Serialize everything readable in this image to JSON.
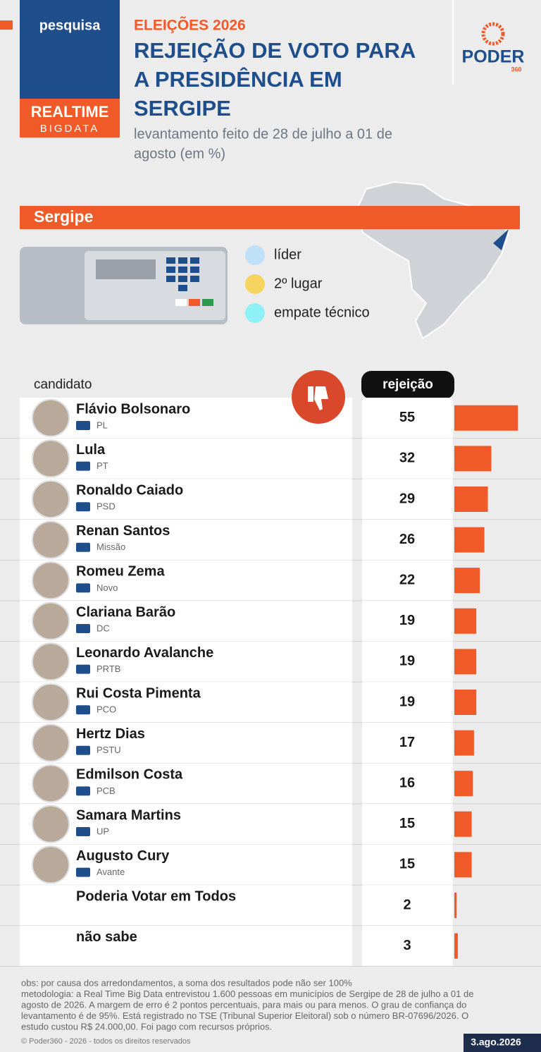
{
  "header": {
    "badge_top": "pesquisa",
    "badge_brand_1": "REALTIME",
    "badge_brand_2": "BIGDATA",
    "kicker": "ELEIÇÕES 2026",
    "title_lines": [
      "REJEIÇÃO DE VOTO PARA",
      "A PRESIDÊNCIA EM",
      "SERGIPE"
    ],
    "subtitle_lines": [
      "levantamento feito de 28 de julho a 01 de",
      "agosto (em %)"
    ],
    "logo": "PODER",
    "logo_sub": "360"
  },
  "section": "Sergipe",
  "legend": [
    "líder",
    "2º lugar",
    "empate técnico"
  ],
  "chart_data": {
    "type": "bar",
    "orientation": "horizontal",
    "category_header": "candidato",
    "value_header": "rejeição",
    "color": "#f05a28",
    "categories": [
      "Flávio Bolsonaro",
      "Lula",
      "Ronaldo Caiado",
      "Renan Santos",
      "Romeu Zema",
      "Clariana Barão",
      "Leonardo Avalanche",
      "Rui Costa Pimenta",
      "Hertz Dias",
      "Edmilson Costa",
      "Samara Martins",
      "Augusto Cury",
      "Poderia Votar em Todos",
      "não sabe"
    ],
    "parties": [
      "PL",
      "PT",
      "PSD",
      "Missão",
      "Novo",
      "DC",
      "PRTB",
      "PCO",
      "PSTU",
      "PCB",
      "UP",
      "Avante",
      null,
      null
    ],
    "values": [
      55,
      32,
      29,
      26,
      22,
      19,
      19,
      19,
      17,
      16,
      15,
      15,
      2,
      3
    ]
  },
  "footer": {
    "notes": [
      "obs: por causa dos arredondamentos, a soma dos resultados pode não ser 100%",
      "metodologia: a Real Time Big Data entrevistou 1.600 pessoas em municípios de Sergipe de 28 de julho a 01 de",
      "agosto de 2026. A margem de erro é 2 pontos percentuais, para mais ou para menos. O grau de confiança do",
      "levantamento é de 95%. Está registrado no TSE (Tribunal Superior Eleitoral) sob o número BR-07696/2026. O",
      "estudo custou R$ 24.000,00. Foi pago com recursos próprios."
    ],
    "copyright": "© Poder360 - 2026 - todos os direitos reservados",
    "date": "3.ago.2026"
  }
}
